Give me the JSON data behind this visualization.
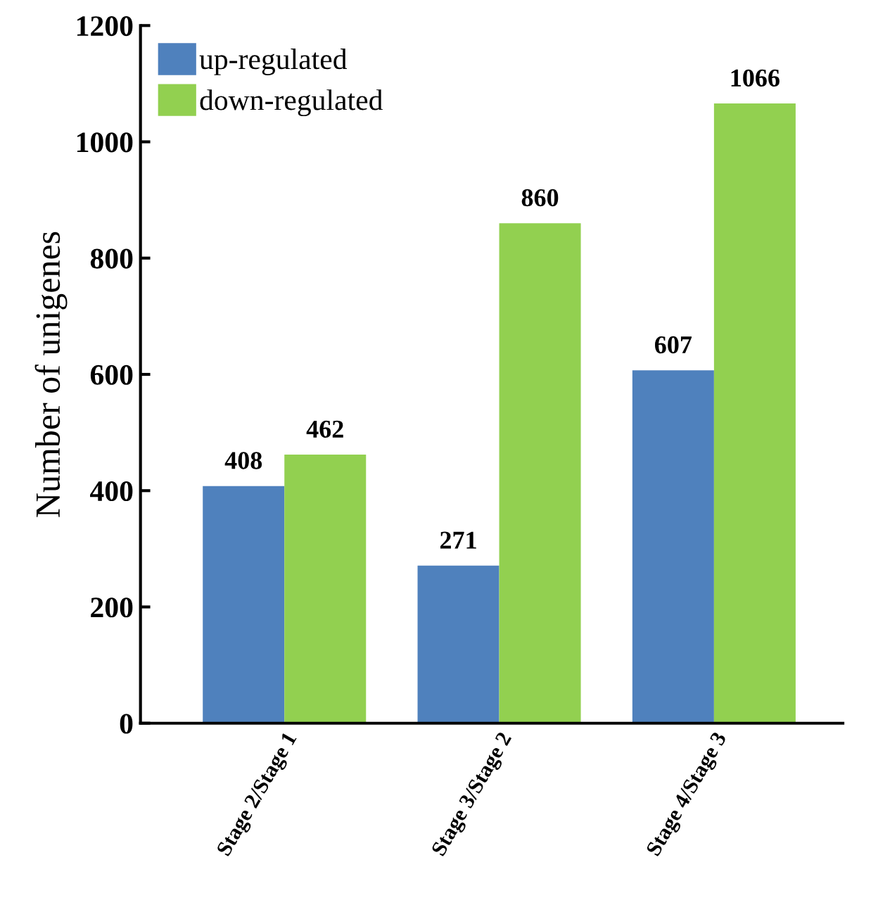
{
  "chart_data": {
    "type": "bar",
    "ylabel": "Number of unigenes",
    "categories": [
      "Stage 2/Stage 1",
      "Stage 3/Stage 2",
      "Stage 4/Stage 3"
    ],
    "series": [
      {
        "name": "up-regulated",
        "color": "#4f81bd",
        "values": [
          408,
          271,
          607
        ]
      },
      {
        "name": "down-regulated",
        "color": "#92d050",
        "values": [
          462,
          860,
          1066
        ]
      }
    ],
    "ylim": [
      0,
      1200
    ],
    "yticks": [
      0,
      200,
      400,
      600,
      800,
      1000,
      1200
    ],
    "data_labels": true,
    "grid": false,
    "legend": "top left"
  }
}
